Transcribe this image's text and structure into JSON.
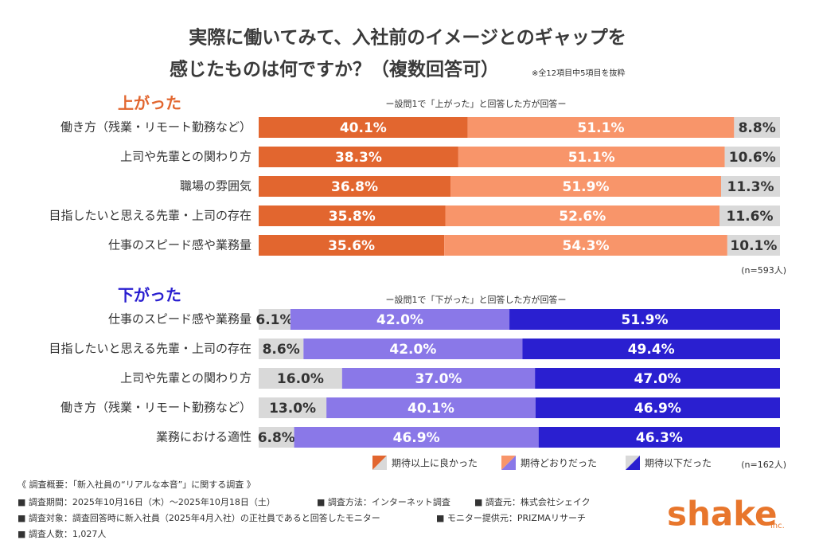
{
  "header": {
    "title_lines": [
      "実際に働いてみて、入社前のイメージとのギャップを",
      "感じたものは何ですか？（複数回答可）"
    ],
    "note": "※全12項目中5項目を抜粋"
  },
  "chart_data": [
    {
      "type": "stacked_bar",
      "orientation": "horizontal",
      "title": "上がった",
      "title_color": "#e2662f",
      "subtitle": "ー設問1で「上がった」と回答した方が回答ー",
      "annotation": "(n=593人)",
      "categories": [
        "働き方（残業・リモート勤務など）",
        "上司や先輩との関わり方",
        "職場の雰囲気",
        "目指したいと思える先輩・上司の存在",
        "仕事のスピード感や業務量"
      ],
      "series": [
        {
          "name": "期待以上に良かった",
          "color": "#e2662f",
          "label_color": "#ffffff",
          "values": [
            40.1,
            38.3,
            36.8,
            35.8,
            35.6
          ],
          "value_labels": [
            "40.1%",
            "38.3%",
            "36.8%",
            "35.8%",
            "35.6%"
          ]
        },
        {
          "name": "期待どおりだった",
          "color": "#f8956a",
          "label_color": "#ffffff",
          "values": [
            51.1,
            51.1,
            51.9,
            52.6,
            54.3
          ],
          "value_labels": [
            "51.1%",
            "51.1%",
            "51.9%",
            "52.6%",
            "54.3%"
          ]
        },
        {
          "name": "期待以下だった",
          "color": "#d9d9d9",
          "label_color": "#333333",
          "values": [
            8.8,
            10.6,
            11.3,
            11.6,
            10.1
          ],
          "value_labels": [
            "8.8%",
            "10.6%",
            "11.3%",
            "11.6%",
            "10.1%"
          ]
        }
      ]
    },
    {
      "type": "stacked_bar",
      "orientation": "horizontal",
      "title": "下がった",
      "title_color": "#2a1fd0",
      "subtitle": "ー設問1で「下がった」と回答した方が回答ー",
      "annotation": "(n=162人)",
      "categories": [
        "仕事のスピード感や業務量",
        "目指したいと思える先輩・上司の存在",
        "上司や先輩との関わり方",
        "働き方（残業・リモート勤務など）",
        "業務における適性"
      ],
      "series": [
        {
          "name": "期待以上に良かった",
          "color": "#d9d9d9",
          "label_color": "#333333",
          "values": [
            6.1,
            8.6,
            16.0,
            13.0,
            6.8
          ],
          "value_labels": [
            "6.1%",
            "8.6%",
            "16.0%",
            "13.0%",
            "6.8%"
          ]
        },
        {
          "name": "期待どおりだった",
          "color": "#8a78e8",
          "label_color": "#ffffff",
          "values": [
            42.0,
            42.0,
            37.0,
            40.1,
            46.9
          ],
          "value_labels": [
            "42.0%",
            "42.0%",
            "37.0%",
            "40.1%",
            "46.9%"
          ]
        },
        {
          "name": "期待以下だった",
          "color": "#2a1fd0",
          "label_color": "#ffffff",
          "values": [
            51.9,
            49.4,
            47.0,
            46.9,
            46.3
          ],
          "value_labels": [
            "51.9%",
            "49.4%",
            "47.0%",
            "46.9%",
            "46.3%"
          ]
        }
      ]
    }
  ],
  "footer": {
    "heading": "《 調査概要：「新入社員の“リアルな本音”」に関する調査 》",
    "lines": [
      [
        "■ 調査期間：2025年10月16日（木）〜2025年10月18日（土）",
        "■ 調査方法：インターネット調査",
        "■ 調査元：株式会社シェイク"
      ],
      [
        "■ 調査対象：調査回答時に新入社員（2025年4月入社）の正社員であると回答したモニター",
        "■ モニター提供元：PRIZMAリサーチ"
      ],
      [
        "■ 調査人数：1,027人"
      ]
    ]
  },
  "logo": {
    "text": "shake",
    "suffix": "inc."
  }
}
